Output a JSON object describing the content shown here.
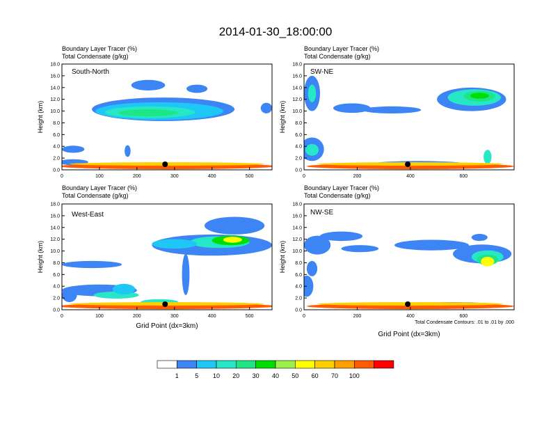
{
  "figure": {
    "title": "2014-01-30_18:00:00",
    "contour_note": "Total Condensate Contours: .01 to .01 by .000"
  },
  "colorbar": {
    "colors": [
      "#ffffff",
      "#3d85f5",
      "#1ec7f5",
      "#27e8c6",
      "#1fe685",
      "#00dd00",
      "#9bf04a",
      "#ffff00",
      "#ffcf00",
      "#ff9f00",
      "#ff5a00",
      "#ff0000"
    ],
    "labels": [
      "1",
      "5",
      "10",
      "20",
      "30",
      "40",
      "50",
      "60",
      "70",
      "100"
    ]
  },
  "chart_data": [
    {
      "type": "heatmap",
      "title_line1": "Boundary Layer Tracer   (%)",
      "title_line2": "Total Condensate   (g/kg)",
      "panel_label": "South-North",
      "xlabel": "",
      "ylabel": "Height (km)",
      "xlim": [
        0,
        560
      ],
      "ylim": [
        0,
        18
      ],
      "xticks": [
        0,
        100,
        200,
        300,
        400,
        500
      ],
      "yticks": [
        "0.0",
        "2.0",
        "4.0",
        "6.0",
        "8.0",
        "10.0",
        "12.0",
        "14.0",
        "16.0",
        "18.0"
      ],
      "marker_x": 275
    },
    {
      "type": "heatmap",
      "title_line1": "Boundary Layer Tracer   (%)",
      "title_line2": "Total Condensate   (g/kg)",
      "panel_label": "SW-NE",
      "xlabel": "",
      "ylabel": "Height (km)",
      "xlim": [
        0,
        790
      ],
      "ylim": [
        0,
        18
      ],
      "xticks": [
        0,
        200,
        400,
        600
      ],
      "yticks": [
        "0.0",
        "2.0",
        "4.0",
        "6.0",
        "8.0",
        "10.0",
        "12.0",
        "14.0",
        "16.0",
        "18.0"
      ],
      "marker_x": 390
    },
    {
      "type": "heatmap",
      "title_line1": "Boundary Layer Tracer   (%)",
      "title_line2": "Total Condensate   (g/kg)",
      "panel_label": "West-East",
      "xlabel": "Grid Point (dx=3km)",
      "ylabel": "Height (km)",
      "xlim": [
        0,
        560
      ],
      "ylim": [
        0,
        18
      ],
      "xticks": [
        0,
        100,
        200,
        300,
        400,
        500
      ],
      "yticks": [
        "0.0",
        "2.0",
        "4.0",
        "6.0",
        "8.0",
        "10.0",
        "12.0",
        "14.0",
        "16.0",
        "18.0"
      ],
      "marker_x": 275
    },
    {
      "type": "heatmap",
      "title_line1": "Boundary Layer Tracer   (%)",
      "title_line2": "Total Condensate   (g/kg)",
      "panel_label": "NW-SE",
      "xlabel": "Grid Point (dx=3km)",
      "ylabel": "Height (km)",
      "xlim": [
        0,
        790
      ],
      "ylim": [
        0,
        18
      ],
      "xticks": [
        0,
        200,
        400,
        600
      ],
      "yticks": [
        "0.0",
        "2.0",
        "4.0",
        "6.0",
        "8.0",
        "10.0",
        "12.0",
        "14.0",
        "16.0",
        "18.0"
      ],
      "marker_x": 390
    }
  ]
}
